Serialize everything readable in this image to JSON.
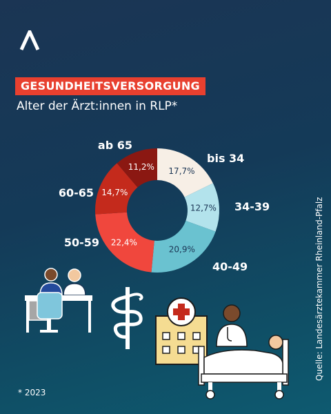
{
  "header": {
    "tag": "GESUNDHEITSVERSORGUNG",
    "subtitle": "Alter der Ärzt:innen in RLP*"
  },
  "chart_data": {
    "type": "pie",
    "donut": true,
    "start_angle_deg": 0,
    "direction": "clockwise",
    "segments": [
      {
        "label": "bis 34",
        "value": 17.7,
        "display": "17,7%",
        "color": "#f7efe6",
        "text_color": "#1b3554"
      },
      {
        "label": "34-39",
        "value": 12.7,
        "display": "12,7%",
        "color": "#b3e3ec",
        "text_color": "#1b3554"
      },
      {
        "label": "40-49",
        "value": 20.9,
        "display": "20,9%",
        "color": "#6ac2d0",
        "text_color": "#1b3554"
      },
      {
        "label": "50-59",
        "value": 22.4,
        "display": "22,4%",
        "color": "#f0473d",
        "text_color": "#ffffff"
      },
      {
        "label": "60-65",
        "value": 14.7,
        "display": "14,7%",
        "color": "#c42a1c",
        "text_color": "#ffffff"
      },
      {
        "label": "ab 65",
        "value": 11.2,
        "display": "11,2%",
        "color": "#8b1812",
        "text_color": "#ffffff"
      }
    ]
  },
  "source": "Quelle: Landesärztekammer Rheinland-Pfalz",
  "footnote": "* 2023",
  "icons": [
    "brand-logo-icon",
    "consultation-icon",
    "caduceus-icon",
    "hospital-icon",
    "patient-bed-icon"
  ]
}
